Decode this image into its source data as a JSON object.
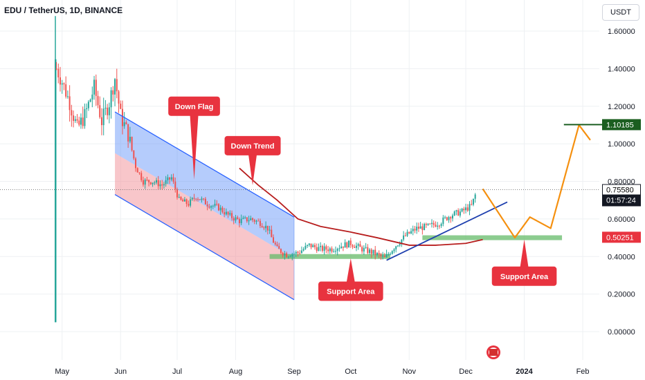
{
  "header": {
    "symbol_title": "EDU / TetherUS, 1D, BINANCE",
    "currency_button": "USDT"
  },
  "colors": {
    "up": "#26a69a",
    "down": "#ef5350",
    "grid": "#eef0f3",
    "axis_text": "#131722",
    "channel_blue": "#2962ff",
    "channel_fill_blue": "#5b8ff9",
    "channel_fill_red": "#f28e96",
    "support_green": "#66bb6a",
    "ma_line": "#b71c1c",
    "trend_blue": "#1e3fae",
    "forecast_orange": "#f5900f",
    "target_green": "#1b5e20",
    "callout_red": "#e8333f"
  },
  "chart_data": {
    "type": "candlestick",
    "title": "EDU / TetherUS, 1D, BINANCE",
    "x_axis_labels": [
      "May",
      "Jun",
      "Jul",
      "Aug",
      "Sep",
      "Oct",
      "Nov",
      "Dec",
      "2024",
      "Feb"
    ],
    "y_axis_ticks": [
      "1.60000",
      "1.40000",
      "1.20000",
      "1.00000",
      "0.80000",
      "0.60000",
      "0.40000",
      "0.20000",
      "0.00000"
    ],
    "ylim": [
      -0.08,
      1.72
    ],
    "price_path": [
      [
        "2023-04-28",
        1.4
      ],
      [
        "2023-05-01",
        1.33
      ],
      [
        "2023-05-05",
        1.22
      ],
      [
        "2023-05-09",
        1.08
      ],
      [
        "2023-05-13",
        1.15
      ],
      [
        "2023-05-18",
        1.3
      ],
      [
        "2023-05-22",
        1.12
      ],
      [
        "2023-05-26",
        1.22
      ],
      [
        "2023-05-29",
        1.35
      ],
      [
        "2023-06-01",
        1.15
      ],
      [
        "2023-06-05",
        1.05
      ],
      [
        "2023-06-09",
        0.88
      ],
      [
        "2023-06-13",
        0.8
      ],
      [
        "2023-06-18",
        0.8
      ],
      [
        "2023-06-23",
        0.78
      ],
      [
        "2023-06-28",
        0.82
      ],
      [
        "2023-07-02",
        0.7
      ],
      [
        "2023-07-07",
        0.68
      ],
      [
        "2023-07-11",
        0.72
      ],
      [
        "2023-07-17",
        0.68
      ],
      [
        "2023-07-23",
        0.66
      ],
      [
        "2023-07-28",
        0.62
      ],
      [
        "2023-08-03",
        0.59
      ],
      [
        "2023-08-09",
        0.6
      ],
      [
        "2023-08-14",
        0.58
      ],
      [
        "2023-08-18",
        0.55
      ],
      [
        "2023-08-20",
        0.5
      ],
      [
        "2023-08-23",
        0.44
      ],
      [
        "2023-08-28",
        0.41
      ],
      [
        "2023-09-03",
        0.42
      ],
      [
        "2023-09-09",
        0.46
      ],
      [
        "2023-09-15",
        0.44
      ],
      [
        "2023-09-21",
        0.44
      ],
      [
        "2023-09-27",
        0.46
      ],
      [
        "2023-10-01",
        0.47
      ],
      [
        "2023-10-07",
        0.44
      ],
      [
        "2023-10-13",
        0.42
      ],
      [
        "2023-10-19",
        0.39
      ],
      [
        "2023-10-24",
        0.45
      ],
      [
        "2023-10-30",
        0.51
      ],
      [
        "2023-11-05",
        0.55
      ],
      [
        "2023-11-11",
        0.56
      ],
      [
        "2023-11-17",
        0.58
      ],
      [
        "2023-11-23",
        0.62
      ],
      [
        "2023-11-29",
        0.64
      ],
      [
        "2023-12-04",
        0.67
      ],
      [
        "2023-12-07",
        0.7558
      ]
    ],
    "moving_average": [
      [
        "2023-08-03",
        0.87
      ],
      [
        "2023-08-13",
        0.78
      ],
      [
        "2023-08-23",
        0.7
      ],
      [
        "2023-09-03",
        0.6
      ],
      [
        "2023-09-15",
        0.56
      ],
      [
        "2023-10-01",
        0.53
      ],
      [
        "2023-10-15",
        0.5
      ],
      [
        "2023-11-01",
        0.46
      ],
      [
        "2023-11-15",
        0.46
      ],
      [
        "2023-12-01",
        0.47
      ],
      [
        "2023-12-10",
        0.49
      ]
    ],
    "down_channel": {
      "upper": [
        [
          "2023-05-29",
          1.17
        ],
        [
          "2023-09-01",
          0.61
        ]
      ],
      "lower": [
        [
          "2023-05-29",
          0.73
        ],
        [
          "2023-09-01",
          0.17
        ]
      ],
      "mid_start": 0.95
    },
    "support_zones": [
      {
        "from": "2023-08-19",
        "to": "2023-10-22",
        "price": 0.4
      },
      {
        "from": "2023-11-08",
        "to": "2024-01-21",
        "price": 0.5
      }
    ],
    "uptrend_line": [
      [
        "2023-10-20",
        0.38
      ],
      [
        "2023-12-23",
        0.69
      ]
    ],
    "forecast_path": [
      [
        "2023-12-10",
        0.76
      ],
      [
        "2023-12-27",
        0.5
      ],
      [
        "2024-01-04",
        0.61
      ],
      [
        "2024-01-15",
        0.55
      ],
      [
        "2024-01-30",
        1.1
      ],
      [
        "2024-02-05",
        1.02
      ]
    ],
    "target_line": {
      "from": "2024-01-22",
      "to": "2024-02-14",
      "price": 1.10185
    },
    "price_labels": [
      {
        "text": "1.10185",
        "price": 1.10185,
        "style": "target"
      },
      {
        "text": "0.75580",
        "price": 0.7558,
        "style": "current",
        "countdown": "01:57:24"
      },
      {
        "text": "0.50251",
        "price": 0.50251,
        "style": "support"
      }
    ],
    "annotations": [
      {
        "text": "Down Flag",
        "date": "2023-07-10",
        "price": 1.2,
        "pointer_price": 0.81
      },
      {
        "text": "Down Trend",
        "date": "2023-08-10",
        "price": 0.99,
        "pointer_price": 0.78
      },
      {
        "text": "Support Area",
        "date": "2023-10-01",
        "price": 0.215,
        "pointer_price": 0.39
      },
      {
        "text": "Support Area",
        "date": "2024-01-01",
        "price": 0.295,
        "pointer_price": 0.49
      }
    ],
    "grid": true
  }
}
